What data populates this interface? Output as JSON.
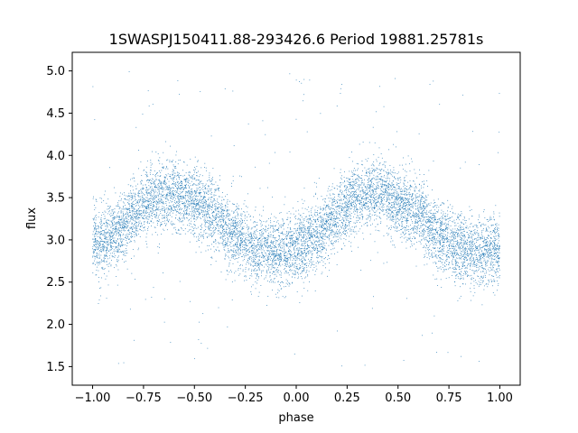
{
  "chart_data": {
    "type": "scatter",
    "title": "1SWASPJ150411.88-293426.6 Period 19881.25781s",
    "xlabel": "phase",
    "ylabel": "flux",
    "xlim": [
      -1.1,
      1.1
    ],
    "ylim": [
      1.28,
      5.22
    ],
    "xticks": [
      -1.0,
      -0.75,
      -0.5,
      -0.25,
      0.0,
      0.25,
      0.5,
      0.75,
      1.0
    ],
    "xtick_labels": [
      "−1.00",
      "−0.75",
      "−0.50",
      "−0.25",
      "0.00",
      "0.25",
      "0.50",
      "0.75",
      "1.00"
    ],
    "yticks": [
      1.5,
      2.0,
      2.5,
      3.0,
      3.5,
      4.0,
      4.5,
      5.0
    ],
    "ytick_labels": [
      "1.5",
      "2.0",
      "2.5",
      "3.0",
      "3.5",
      "4.0",
      "4.5",
      "5.0"
    ],
    "grid": false,
    "point_color": "#1f77b4",
    "series": [
      {
        "phase_range": [
          -1.0,
          1.0
        ],
        "trend_phase": [
          -1.0,
          -0.9,
          -0.8,
          -0.7,
          -0.6,
          -0.5,
          -0.4,
          -0.3,
          -0.2,
          -0.1,
          0.0,
          0.1,
          0.2,
          0.3,
          0.4,
          0.5,
          0.6,
          0.7,
          0.8,
          0.9,
          1.0
        ],
        "trend_flux": [
          2.95,
          3.05,
          3.3,
          3.5,
          3.55,
          3.45,
          3.3,
          3.05,
          2.9,
          2.85,
          2.9,
          3.05,
          3.3,
          3.5,
          3.55,
          3.45,
          3.3,
          3.05,
          2.9,
          2.85,
          2.9
        ],
        "scatter_std": 0.2
      }
    ]
  }
}
